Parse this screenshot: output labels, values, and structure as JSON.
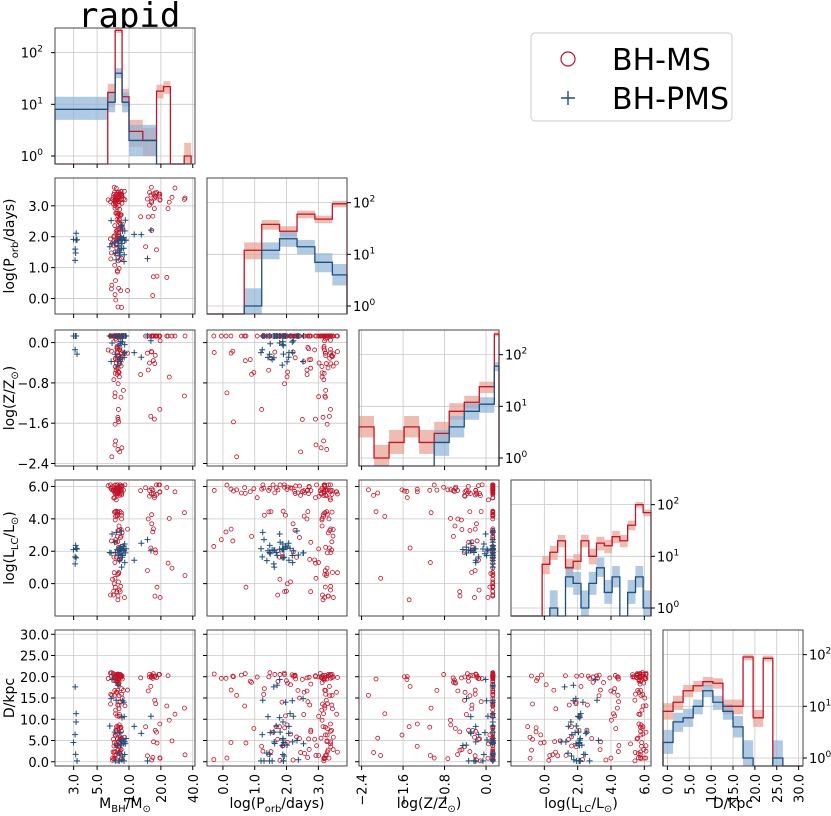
{
  "title": "rapid",
  "colors": {
    "ms": "#c0152a",
    "ms_band": "#e8a090",
    "pms": "#1f4e79",
    "pms_band": "#8fb3d9",
    "grid": "#c8c8c8",
    "frame": "#444444"
  },
  "legend": {
    "ms_label": "BH-MS",
    "pms_label": "BH-PMS",
    "ms_marker": "circle",
    "pms_marker": "plus",
    "position": "top-right"
  },
  "chart_data": {
    "type": "corner",
    "variables": [
      {
        "key": "mbh",
        "label_main": "M",
        "label_sub": "BH",
        "label_rest": "/M",
        "label_sub2": "⊙",
        "range": [
          2.0,
          42.0
        ],
        "ticks": [
          3.0,
          5.0,
          10.0,
          20.0,
          40.0
        ],
        "tick_labels": [
          "3.0",
          "5.0",
          "10.0",
          "20.0",
          "40.0"
        ],
        "scale": "log"
      },
      {
        "key": "porb",
        "label_main": "log(P",
        "label_sub": "orb",
        "label_rest": "/days)",
        "label_sub2": "",
        "range": [
          -0.5,
          3.9
        ],
        "ticks": [
          0.0,
          1.0,
          2.0,
          3.0
        ],
        "tick_labels": [
          "0.0",
          "1.0",
          "2.0",
          "3.0"
        ],
        "scale": "linear"
      },
      {
        "key": "z",
        "label_main": "log(Z/Z",
        "label_sub": "⊙",
        "label_rest": ")",
        "label_sub2": "",
        "range": [
          -2.45,
          0.25
        ],
        "ticks": [
          -2.4,
          -1.6,
          -0.8,
          0.0
        ],
        "tick_labels": [
          "−2.4",
          "−1.6",
          "−0.8",
          "0.0"
        ],
        "scale": "linear"
      },
      {
        "key": "llc",
        "label_main": "log(L",
        "label_sub": "LC",
        "label_rest": "/L",
        "label_sub2": "⊙",
        "label_end": ")",
        "range": [
          -2.0,
          6.4
        ],
        "ticks": [
          0.0,
          2.0,
          4.0,
          6.0
        ],
        "tick_labels": [
          "0.0",
          "2.0",
          "4.0",
          "6.0"
        ],
        "scale": "linear"
      },
      {
        "key": "d",
        "label_main": "D/kpc",
        "label_sub": "",
        "label_rest": "",
        "label_sub2": "",
        "range": [
          -1.0,
          31.0
        ],
        "ticks": [
          0.0,
          5.0,
          10.0,
          15.0,
          20.0,
          25.0,
          30.0
        ],
        "tick_labels": [
          "0.0",
          "5.0",
          "10.0",
          "15.0",
          "20.0",
          "25.0",
          "30.0"
        ],
        "scale": "linear"
      }
    ],
    "hist_ylim": [
      0.7,
      300
    ],
    "hist_yticks": [
      1,
      10,
      100
    ],
    "hist_ytick_labels": [
      [
        "10",
        "0"
      ],
      [
        "10",
        "1"
      ],
      [
        "10",
        "2"
      ]
    ],
    "histograms": [
      {
        "var": "mbh",
        "edges": [
          2.0,
          4.5,
          6.3,
          7.4,
          8.6,
          10.0,
          11.6,
          13.5,
          15.7,
          18.2,
          21.2,
          24.6,
          28.6,
          33.2,
          38.6
        ],
        "ms": [
          0,
          0,
          17,
          270,
          14,
          3,
          3,
          2,
          2,
          18,
          22,
          0,
          0,
          1
        ],
        "ms_lo": [
          0,
          0,
          9,
          240,
          9,
          1.5,
          1.5,
          1,
          1,
          13,
          16,
          0,
          0,
          0.7
        ],
        "ms_hi": [
          0,
          0,
          25,
          300,
          20,
          5,
          5,
          3.5,
          3.5,
          24,
          28,
          0,
          0,
          1.8
        ],
        "pms": [
          8,
          8,
          11,
          40,
          11,
          2,
          2,
          2,
          2,
          0,
          0,
          0,
          0,
          0
        ],
        "pms_lo": [
          5,
          5,
          7,
          32,
          7,
          1,
          1,
          1,
          1,
          0,
          0,
          0,
          0,
          0
        ],
        "pms_hi": [
          14,
          14,
          17,
          50,
          17,
          4,
          4,
          4,
          4,
          0,
          0,
          0,
          0,
          0
        ],
        "ytick_side": "left"
      },
      {
        "var": "porb",
        "edges": [
          -0.5,
          0.11,
          0.67,
          1.22,
          1.78,
          2.33,
          2.89,
          3.44,
          3.9
        ],
        "ms": [
          0,
          0,
          12,
          38,
          28,
          60,
          48,
          95
        ],
        "ms_lo": [
          0,
          0,
          8,
          30,
          22,
          50,
          40,
          82
        ],
        "ms_hi": [
          0,
          0,
          17,
          46,
          35,
          70,
          56,
          108
        ],
        "pms": [
          0,
          0,
          1,
          12,
          20,
          14,
          7,
          4
        ],
        "pms_lo": [
          0,
          0,
          0.7,
          8,
          14,
          10,
          4.5,
          2.5
        ],
        "pms_hi": [
          0,
          0,
          2.2,
          17,
          27,
          19,
          10.5,
          6.5
        ],
        "ytick_side": "right"
      },
      {
        "var": "z",
        "edges": [
          -2.45,
          -2.16,
          -1.87,
          -1.58,
          -1.29,
          -1.0,
          -0.71,
          -0.42,
          -0.13,
          0.16,
          0.25
        ],
        "ms": [
          4,
          1,
          2,
          4,
          2,
          3,
          8,
          12,
          24,
          250
        ],
        "ms_lo": [
          2.5,
          0.7,
          1.2,
          2.5,
          1.2,
          2,
          5.5,
          9,
          18,
          225
        ],
        "ms_hi": [
          6.5,
          1.8,
          3.5,
          6.5,
          3.5,
          5,
          11.5,
          16,
          30,
          280
        ],
        "pms": [
          0,
          0,
          0,
          0,
          0,
          2,
          4,
          8,
          11,
          60
        ],
        "pms_lo": [
          0,
          0,
          0,
          0,
          0,
          1.1,
          2.5,
          5.5,
          7.5,
          48
        ],
        "pms_hi": [
          0,
          0,
          0,
          0,
          0,
          3.5,
          6.5,
          11.5,
          15,
          72
        ],
        "ytick_side": "right"
      },
      {
        "var": "llc",
        "edges": [
          -2.0,
          -0.6,
          -0.13,
          0.33,
          0.8,
          1.27,
          1.73,
          2.2,
          2.67,
          3.13,
          3.6,
          4.07,
          4.53,
          5.0,
          5.47,
          5.93,
          6.4
        ],
        "ms": [
          0,
          0,
          7,
          12,
          20,
          6,
          8,
          20,
          10,
          18,
          16,
          24,
          20,
          40,
          100,
          70
        ],
        "ms_lo": [
          0,
          0,
          4.5,
          8.5,
          15,
          4,
          5.5,
          15,
          7,
          13,
          11.5,
          18,
          15,
          32,
          88,
          60
        ],
        "ms_hi": [
          0,
          0,
          10,
          16,
          26,
          9,
          11,
          26,
          14,
          24,
          21,
          31,
          26,
          49,
          113,
          80
        ],
        "pms": [
          0,
          0,
          0,
          1,
          0,
          4,
          3,
          1,
          3,
          6,
          2,
          4,
          0,
          2,
          4,
          1
        ],
        "pms_lo": [
          0,
          0,
          0,
          0.7,
          0,
          2.5,
          1.8,
          0.7,
          1.8,
          4,
          1.2,
          2.5,
          0,
          1.2,
          2.5,
          0.7
        ],
        "pms_hi": [
          0,
          0,
          0,
          2.2,
          0,
          6.5,
          5,
          2.2,
          5,
          9.5,
          3.5,
          6.5,
          0,
          3.5,
          6.5,
          2.2
        ],
        "ytick_side": "right"
      },
      {
        "var": "d",
        "edges": [
          -1.0,
          1.3,
          3.6,
          5.9,
          8.1,
          10.4,
          12.7,
          15.0,
          17.3,
          19.6,
          21.9,
          24.1,
          26.4,
          28.7,
          31.0
        ],
        "ms": [
          8,
          12,
          20,
          25,
          30,
          28,
          10,
          10,
          90,
          6,
          85,
          0,
          0,
          0
        ],
        "ms_lo": [
          5.5,
          8.5,
          15,
          19,
          24,
          22,
          7,
          7,
          78,
          4,
          74,
          0,
          0,
          0
        ],
        "ms_hi": [
          11.5,
          16,
          26,
          31,
          37,
          35,
          13.5,
          13.5,
          102,
          8.5,
          96,
          0,
          0,
          0
        ],
        "pms": [
          2,
          5,
          6,
          10,
          20,
          12,
          8,
          4,
          1,
          0,
          0,
          1,
          0,
          0
        ],
        "pms_lo": [
          1.2,
          3.2,
          4,
          7,
          15,
          8.5,
          5.5,
          2.5,
          0.7,
          0,
          0,
          0.7,
          0,
          0
        ],
        "pms_hi": [
          3.5,
          7.5,
          9,
          13.5,
          26,
          16,
          11,
          6.5,
          2.2,
          0,
          0,
          2.2,
          0,
          0
        ],
        "ytick_side": "right"
      }
    ],
    "scatter_seed": 12345
  }
}
